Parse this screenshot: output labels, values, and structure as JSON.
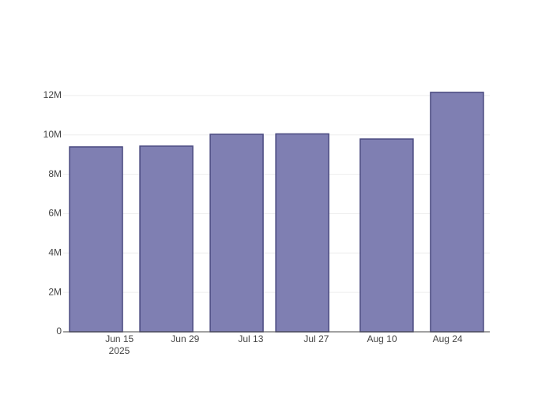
{
  "chart_data": {
    "type": "bar",
    "x": [
      "2025-06-10",
      "2025-06-25",
      "2025-07-10",
      "2025-07-24",
      "2025-08-11",
      "2025-08-26"
    ],
    "values": [
      9390000,
      9430000,
      10030000,
      10050000,
      9790000,
      12160000
    ],
    "color": "#7f7fb2",
    "edge_color": "#4a4a80",
    "xlim": [
      "2025-06-03",
      "2025-09-02"
    ],
    "xticks": [
      {
        "value": "2025-06-15",
        "label": "Jun 15"
      },
      {
        "value": "2025-06-29",
        "label": "Jun 29"
      },
      {
        "value": "2025-07-13",
        "label": "Jul 13"
      },
      {
        "value": "2025-07-27",
        "label": "Jul 27"
      },
      {
        "value": "2025-08-10",
        "label": "Aug 10"
      },
      {
        "value": "2025-08-24",
        "label": "Aug 24"
      }
    ],
    "x_year_label": "2025",
    "ylim": [
      0,
      13640000
    ],
    "yticks": [
      0,
      {
        "value": 2000000,
        "label": "2M"
      },
      {
        "value": 4000000,
        "label": "4M"
      },
      {
        "value": 6000000,
        "label": "6M"
      },
      {
        "value": 8000000,
        "label": "8M"
      },
      {
        "value": 10000000,
        "label": "10M"
      },
      {
        "value": 12000000,
        "label": "12M"
      }
    ],
    "grid": true
  }
}
